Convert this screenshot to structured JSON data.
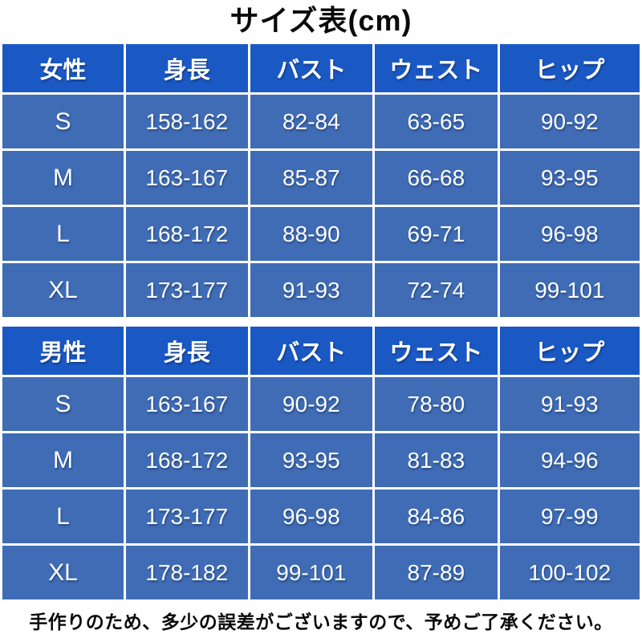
{
  "page_title": "サイズ表(cm)",
  "footer_note": "手作りのため、多少の誤差がございますので、予めご了承ください。",
  "colors": {
    "header_blue": "#1a58c4",
    "row_blue": "#3f6cb5",
    "cell_text": "#ffffff",
    "title_text": "#0a0a0a",
    "page_bg": "#ffffff"
  },
  "chart_data": [
    {
      "type": "table",
      "group_label": "女性",
      "columns": [
        "女性",
        "身長",
        "バスト",
        "ウェスト",
        "ヒップ"
      ],
      "rows": [
        [
          "S",
          "158-162",
          "82-84",
          "63-65",
          "90-92"
        ],
        [
          "M",
          "163-167",
          "85-87",
          "66-68",
          "93-95"
        ],
        [
          "L",
          "168-172",
          "88-90",
          "69-71",
          "96-98"
        ],
        [
          "XL",
          "173-177",
          "91-93",
          "72-74",
          "99-101"
        ]
      ]
    },
    {
      "type": "table",
      "group_label": "男性",
      "columns": [
        "男性",
        "身長",
        "バスト",
        "ウェスト",
        "ヒップ"
      ],
      "rows": [
        [
          "S",
          "163-167",
          "90-92",
          "78-80",
          "91-93"
        ],
        [
          "M",
          "168-172",
          "93-95",
          "81-83",
          "94-96"
        ],
        [
          "L",
          "173-177",
          "96-98",
          "84-86",
          "97-99"
        ],
        [
          "XL",
          "178-182",
          "99-101",
          "87-89",
          "100-102"
        ]
      ]
    }
  ]
}
